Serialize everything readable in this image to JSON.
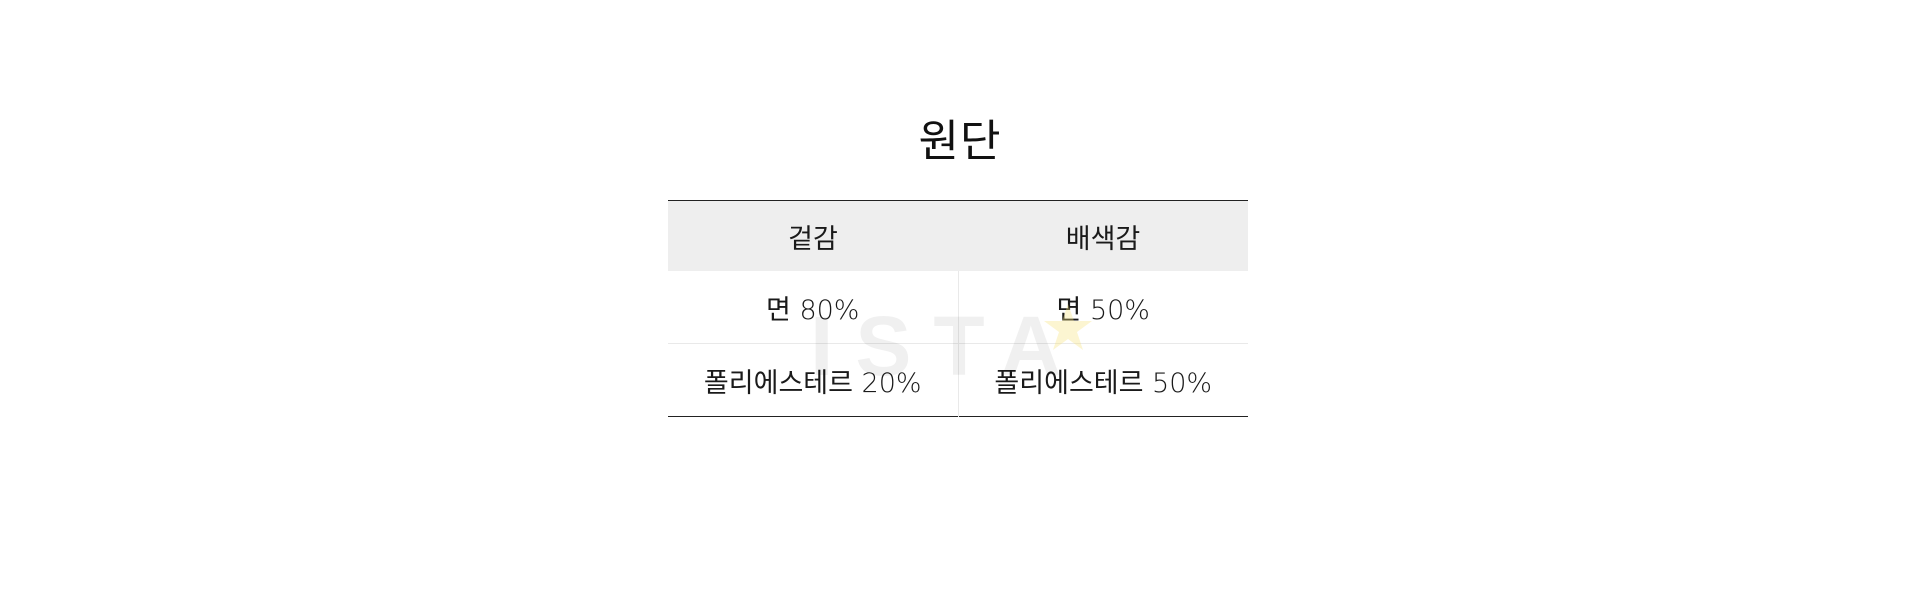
{
  "section": {
    "title": "원단"
  },
  "table": {
    "headers": [
      "겉감",
      "배색감"
    ],
    "rows": [
      [
        "면 80%",
        "면 50%"
      ],
      [
        "폴리에스테르 20%",
        "폴리에스테르 50%"
      ]
    ]
  },
  "watermark": {
    "text": "ISTA",
    "star_color": "#f5e27a"
  },
  "colors": {
    "header_background": "#eeeeee",
    "rule": "#222222",
    "cell_divider": "#e9e9e9",
    "text": "#1a1a1a"
  }
}
